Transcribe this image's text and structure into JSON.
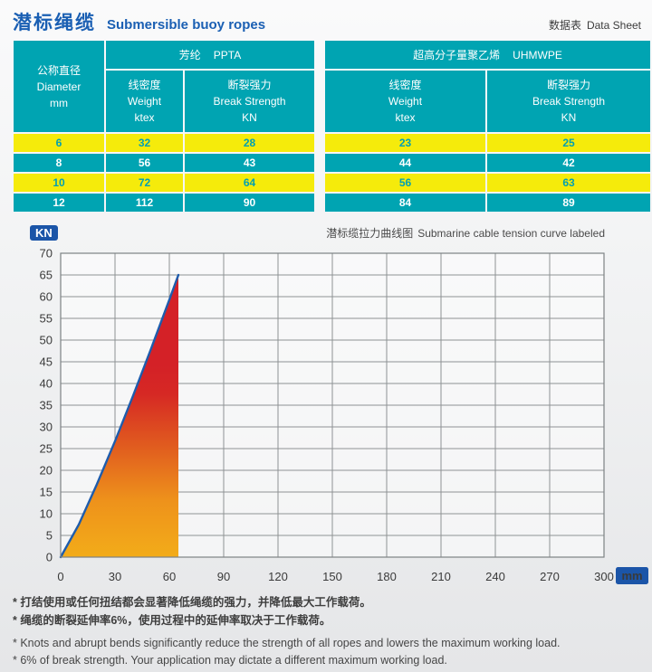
{
  "header": {
    "title_cn": "潜标绳缆",
    "title_en": "Submersible buoy ropes",
    "datasheet_cn": "数据表",
    "datasheet_en": "Data Sheet"
  },
  "colors": {
    "accent_blue": "#1a5fb3",
    "table_teal": "#00a4b2",
    "table_yellow": "#f5eb0b",
    "badge_blue": "#1b55a8"
  },
  "tables": {
    "left": {
      "diameter": {
        "cn": "公称直径",
        "en": "Diameter",
        "unit": "mm"
      },
      "group": {
        "cn": "芳纶",
        "en": "PPTA"
      },
      "weight": {
        "cn": "线密度",
        "en": "Weight",
        "unit": "ktex"
      },
      "strength": {
        "cn": "断裂强力",
        "en": "Break Strength",
        "unit": "KN"
      },
      "rows": [
        [
          "6",
          "32",
          "28"
        ],
        [
          "8",
          "56",
          "43"
        ],
        [
          "10",
          "72",
          "64"
        ],
        [
          "12",
          "112",
          "90"
        ]
      ]
    },
    "right": {
      "group": {
        "cn": "超高分子量聚乙烯",
        "en": "UHMWPE"
      },
      "weight": {
        "cn": "线密度",
        "en": "Weight",
        "unit": "ktex"
      },
      "strength": {
        "cn": "断裂强力",
        "en": "Break Strength",
        "unit": "KN"
      },
      "rows": [
        [
          "23",
          "25"
        ],
        [
          "44",
          "42"
        ],
        [
          "56",
          "63"
        ],
        [
          "84",
          "89"
        ]
      ]
    }
  },
  "chart_data": {
    "type": "area",
    "title_cn": "潜标缆拉力曲线图",
    "title_en": "Submarine cable tension curve labeled",
    "xlabel": "mm",
    "ylabel": "KN",
    "xlim": [
      0,
      300
    ],
    "ylim": [
      0,
      70
    ],
    "x_ticks": [
      0,
      30,
      60,
      90,
      120,
      150,
      180,
      210,
      240,
      270,
      300
    ],
    "y_ticks": [
      0,
      5,
      10,
      15,
      20,
      25,
      30,
      35,
      40,
      45,
      50,
      55,
      60,
      65,
      70
    ],
    "grid": true,
    "legend": "none",
    "series": [
      {
        "name": "潜标缆拉力曲线 tension curve",
        "x": [
          0,
          10,
          20,
          30,
          40,
          50,
          60,
          65
        ],
        "y": [
          0,
          7.5,
          16.8,
          26.7,
          37.2,
          48.1,
          59.3,
          65
        ]
      }
    ],
    "annotations": {
      "peak_x_mm": 65,
      "peak_y_kn": 65
    },
    "colors": {
      "line": "#1e5cac",
      "grid": "#8e9294",
      "border": "#7d8284",
      "tick_text": "#3a3a3a",
      "badge_bg": "#1b55a8",
      "badge_text": "#ffffff",
      "fill_stops": [
        [
          "0%",
          "#f3ac19"
        ],
        [
          "20%",
          "#ee921b"
        ],
        [
          "40%",
          "#e05a1f"
        ],
        [
          "58%",
          "#d62824"
        ],
        [
          "68%",
          "#d42127"
        ],
        [
          "100%",
          "#d42127"
        ]
      ]
    }
  },
  "footnotes": [
    "* 打结使用或任何扭结都会显著降低绳缆的强力，并降低最大工作载荷。",
    "* 绳缆的断裂延伸率6%，使用过程中的延伸率取决于工作载荷。",
    "* Knots and abrupt bends significantly reduce the strength of all ropes and lowers the maximum working load.",
    "* 6% of break strength. Your application may dictate a different maximum working load."
  ]
}
